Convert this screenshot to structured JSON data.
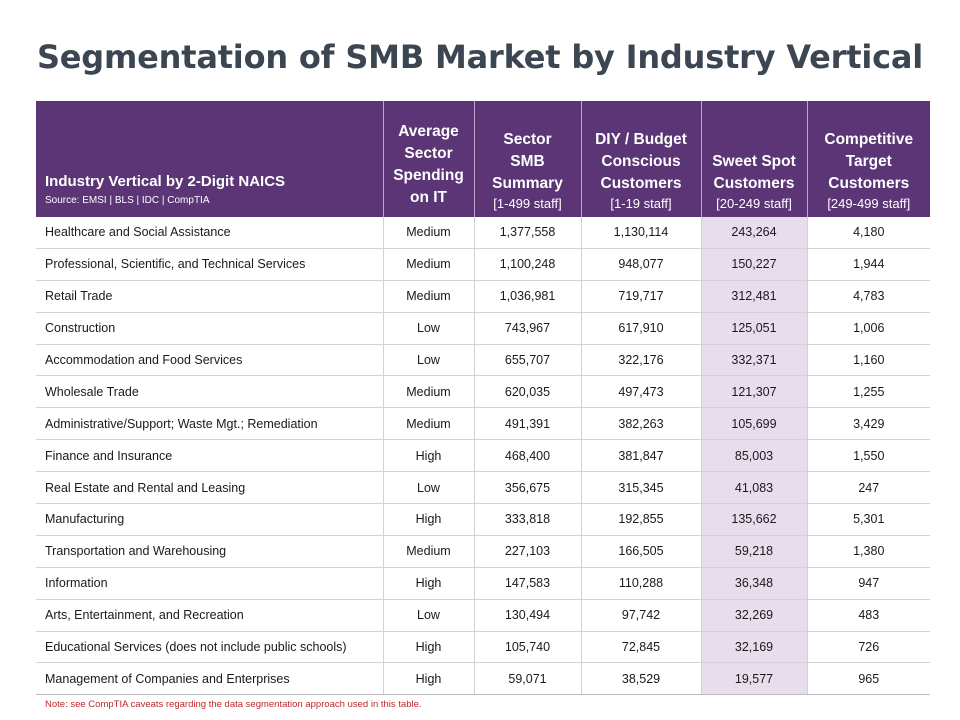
{
  "title": "Segmentation of SMB Market by Industry Vertical",
  "colors": {
    "header_bg": "#5b3575",
    "sweet_spot_bg": "#e7dded",
    "title_color": "#3b4652",
    "note_color": "#c0272d"
  },
  "table": {
    "headers": {
      "industry": {
        "label": "Industry Vertical by 2-Digit NAICS",
        "source": "Source: EMSI | BLS | IDC | CompTIA"
      },
      "spending": {
        "line1": "Average",
        "line2": "Sector",
        "line3": "Spending",
        "line4": "on IT"
      },
      "summary": {
        "line1": "Sector",
        "line2": "SMB",
        "line3": "Summary",
        "sub": "[1-499 staff]"
      },
      "diy": {
        "line1": "DIY / Budget",
        "line2": "Conscious",
        "line3": "Customers",
        "sub": "[1-19 staff]"
      },
      "sweet": {
        "line1": "Sweet Spot",
        "line2": "Customers",
        "sub": "[20-249 staff]"
      },
      "competitive": {
        "line1": "Competitive",
        "line2": "Target",
        "line3": "Customers",
        "sub": "[249-499 staff]"
      }
    },
    "rows": [
      {
        "industry": "Healthcare and Social Assistance",
        "spending": "Medium",
        "summary": "1,377,558",
        "diy": "1,130,114",
        "sweet": "243,264",
        "competitive": "4,180"
      },
      {
        "industry": "Professional, Scientific, and Technical Services",
        "spending": "Medium",
        "summary": "1,100,248",
        "diy": "948,077",
        "sweet": "150,227",
        "competitive": "1,944"
      },
      {
        "industry": "Retail Trade",
        "spending": "Medium",
        "summary": "1,036,981",
        "diy": "719,717",
        "sweet": "312,481",
        "competitive": "4,783"
      },
      {
        "industry": "Construction",
        "spending": "Low",
        "summary": "743,967",
        "diy": "617,910",
        "sweet": "125,051",
        "competitive": "1,006"
      },
      {
        "industry": "Accommodation and Food Services",
        "spending": "Low",
        "summary": "655,707",
        "diy": "322,176",
        "sweet": "332,371",
        "competitive": "1,160"
      },
      {
        "industry": "Wholesale Trade",
        "spending": "Medium",
        "summary": "620,035",
        "diy": "497,473",
        "sweet": "121,307",
        "competitive": "1,255"
      },
      {
        "industry": "Administrative/Support; Waste Mgt.; Remediation",
        "spending": "Medium",
        "summary": "491,391",
        "diy": "382,263",
        "sweet": "105,699",
        "competitive": "3,429"
      },
      {
        "industry": "Finance and Insurance",
        "spending": "High",
        "summary": "468,400",
        "diy": "381,847",
        "sweet": "85,003",
        "competitive": "1,550"
      },
      {
        "industry": "Real Estate and Rental and Leasing",
        "spending": "Low",
        "summary": "356,675",
        "diy": "315,345",
        "sweet": "41,083",
        "competitive": "247"
      },
      {
        "industry": "Manufacturing",
        "spending": "High",
        "summary": "333,818",
        "diy": "192,855",
        "sweet": "135,662",
        "competitive": "5,301"
      },
      {
        "industry": "Transportation and Warehousing",
        "spending": "Medium",
        "summary": "227,103",
        "diy": "166,505",
        "sweet": "59,218",
        "competitive": "1,380"
      },
      {
        "industry": "Information",
        "spending": "High",
        "summary": "147,583",
        "diy": "110,288",
        "sweet": "36,348",
        "competitive": "947"
      },
      {
        "industry": "Arts, Entertainment, and Recreation",
        "spending": "Low",
        "summary": "130,494",
        "diy": "97,742",
        "sweet": "32,269",
        "competitive": "483"
      },
      {
        "industry": "Educational Services (does not include public schools)",
        "spending": "High",
        "summary": "105,740",
        "diy": "72,845",
        "sweet": "32,169",
        "competitive": "726"
      },
      {
        "industry": "Management of Companies and Enterprises",
        "spending": "High",
        "summary": "59,071",
        "diy": "38,529",
        "sweet": "19,577",
        "competitive": "965"
      }
    ]
  },
  "note": "Note: see CompTIA caveats regarding the data segmentation approach used in this table."
}
